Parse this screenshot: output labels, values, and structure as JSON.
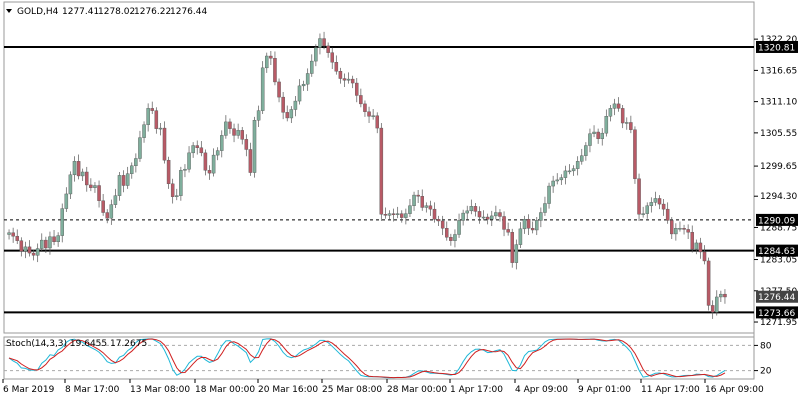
{
  "header": {
    "symbol": "GOLD,H4",
    "ohlc": [
      "1277.41",
      "1278.02",
      "1276.22",
      "1276.44"
    ]
  },
  "colors": {
    "bull": "#7fae9c",
    "bear": "#b85a66",
    "axis": "#9a9a9a",
    "stoch_main": "#20b8d8",
    "stoch_signal": "#d02020",
    "tag_bg": "#000000",
    "tag_fg": "#ffffff"
  },
  "chart_data": [
    {
      "type": "candlestick",
      "title": "GOLD,H4",
      "ylim": [
        1270.0,
        1325.6
      ],
      "y_ticks": [
        "1322.20",
        "1316.65",
        "1311.10",
        "1305.55",
        "1299.65",
        "1294.30",
        "1288.75",
        "1283.05",
        "1277.50",
        "1271.95"
      ],
      "x_ticks": [
        "6 Mar 2019",
        "8 Mar 17:00",
        "13 Mar 08:00",
        "18 Mar 00:00",
        "20 Mar 16:00",
        "25 Mar 08:00",
        "28 Mar 00:00",
        "1 Apr 17:00",
        "4 Apr 09:00",
        "9 Apr 01:00",
        "11 Apr 17:00",
        "16 Apr 09:00"
      ],
      "closes": [
        1287.8,
        1287.2,
        1286.4,
        1284.5,
        1285.3,
        1284.2,
        1283.8,
        1285.0,
        1286.5,
        1285.1,
        1287.1,
        1286.2,
        1287.3,
        1292.1,
        1294.7,
        1298.1,
        1300.5,
        1297.9,
        1298.6,
        1296.3,
        1295.8,
        1296.2,
        1293.5,
        1291.4,
        1290.4,
        1292.8,
        1294.4,
        1298.0,
        1296.2,
        1298.3,
        1299.7,
        1301.0,
        1304.7,
        1307.0,
        1309.9,
        1309.5,
        1306.3,
        1306.4,
        1300.7,
        1296.5,
        1294.2,
        1294.4,
        1298.9,
        1299.1,
        1302.0,
        1303.3,
        1302.9,
        1302.0,
        1298.9,
        1298.4,
        1301.6,
        1302.4,
        1305.1,
        1307.5,
        1306.3,
        1305.1,
        1306.0,
        1304.4,
        1302.6,
        1298.5,
        1307.8,
        1309.5,
        1317.1,
        1319.2,
        1318.8,
        1314.6,
        1311.9,
        1309.2,
        1308.2,
        1309.7,
        1311.2,
        1313.9,
        1314.2,
        1316.1,
        1318.3,
        1320.7,
        1322.3,
        1321.0,
        1319.8,
        1318.1,
        1316.5,
        1315.2,
        1314.9,
        1315.1,
        1314.4,
        1312.2,
        1310.7,
        1309.3,
        1308.5,
        1308.6,
        1306.4,
        1291.1,
        1290.9,
        1291.2,
        1291.0,
        1291.2,
        1290.5,
        1291.2,
        1292.6,
        1294.5,
        1294.3,
        1292.3,
        1292.6,
        1292.0,
        1290.2,
        1289.9,
        1288.6,
        1287.0,
        1286.4,
        1287.5,
        1290.0,
        1291.3,
        1291.7,
        1292.5,
        1291.6,
        1290.6,
        1290.6,
        1290.2,
        1290.8,
        1291.4,
        1290.7,
        1288.4,
        1287.9,
        1282.5,
        1285.7,
        1288.5,
        1290.2,
        1288.6,
        1288.3,
        1290.0,
        1291.4,
        1293.0,
        1296.1,
        1297.0,
        1297.2,
        1297.6,
        1298.8,
        1298.8,
        1299.2,
        1300.5,
        1301.5,
        1303.3,
        1305.4,
        1305.7,
        1304.5,
        1305.5,
        1308.5,
        1309.9,
        1310.7,
        1309.9,
        1307.3,
        1307.4,
        1306.1,
        1297.4,
        1291.1,
        1291.2,
        1292.6,
        1293.2,
        1293.9,
        1292.9,
        1292.0,
        1290.0,
        1287.6,
        1288.6,
        1288.6,
        1288.4,
        1287.9,
        1284.9,
        1286.0,
        1284.4,
        1282.8,
        1274.9,
        1273.7,
        1276.4,
        1276.9,
        1276.4
      ],
      "stochastic": {
        "label": "Stoch(14,3,3) 19.6455 17.2675",
        "ylim": [
          0,
          100
        ],
        "levels": [
          "80",
          "20"
        ],
        "main": 19.6455,
        "signal": 17.2675
      },
      "annotations": [
        {
          "type": "hline",
          "value": 1320.81,
          "label": "1320.81",
          "style": "solid"
        },
        {
          "type": "hline",
          "value": 1290.09,
          "label": "1290.09",
          "style": "dashed"
        },
        {
          "type": "hline",
          "value": 1284.63,
          "label": "1284.63",
          "style": "solid"
        },
        {
          "type": "hline",
          "value": 1273.66,
          "label": "1273.66",
          "style": "solid"
        },
        {
          "type": "price",
          "value": 1276.44,
          "label": "1276.44"
        }
      ]
    }
  ]
}
